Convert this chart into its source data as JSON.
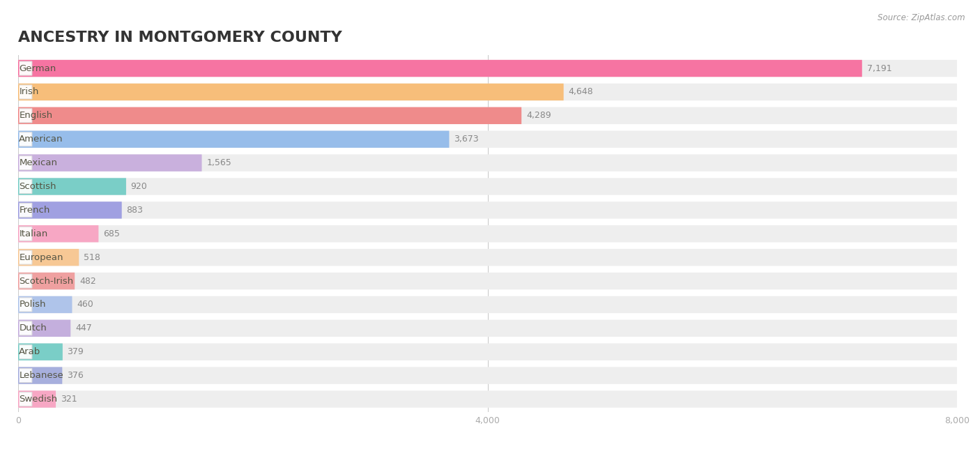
{
  "title": "Ancestry in Montgomery County",
  "source": "Source: ZipAtlas.com",
  "categories": [
    "German",
    "Irish",
    "English",
    "American",
    "Mexican",
    "Scottish",
    "French",
    "Italian",
    "European",
    "Scotch-Irish",
    "Polish",
    "Dutch",
    "Arab",
    "Lebanese",
    "Swedish"
  ],
  "values": [
    7191,
    4648,
    4289,
    3673,
    1565,
    920,
    883,
    685,
    518,
    482,
    460,
    447,
    379,
    376,
    321
  ],
  "bar_colors": [
    "#F7679A",
    "#F9B96E",
    "#F08080",
    "#8EB8EA",
    "#C5AADC",
    "#6ECBC3",
    "#9898E0",
    "#F9A0C0",
    "#F9C48C",
    "#F09898",
    "#A8C0EA",
    "#C0A8DC",
    "#6ECBC3",
    "#A0A8DC",
    "#F9A0C0"
  ],
  "bg_color": "#f7f7f9",
  "row_bg_color": "#efefef",
  "xlim": [
    0,
    8000
  ],
  "xticks": [
    0,
    4000,
    8000
  ],
  "title_fontsize": 16,
  "label_fontsize": 9.5,
  "value_fontsize": 9
}
